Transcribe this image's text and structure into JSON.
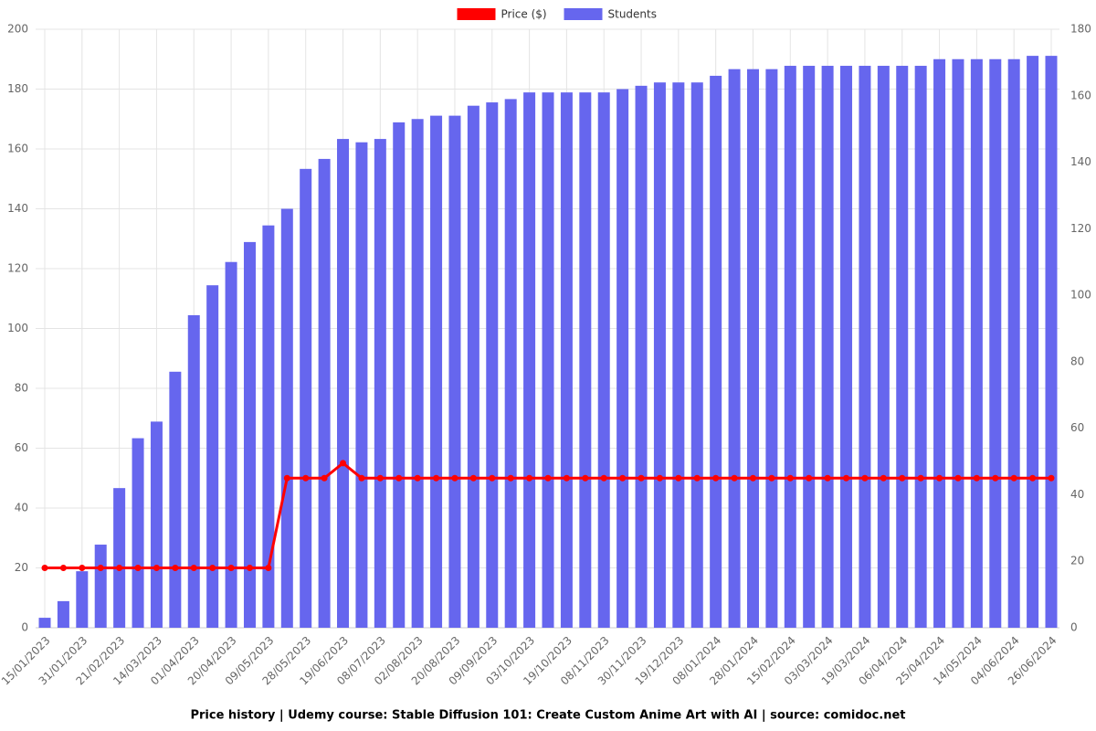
{
  "chart_data": {
    "type": "bar",
    "title": "Price history | Udemy course: Stable Diffusion 101: Create Custom Anime Art with AI | source: comidoc.net",
    "categories": [
      "15/01/2023",
      null,
      "31/01/2023",
      null,
      "21/02/2023",
      null,
      "14/03/2023",
      null,
      "01/04/2023",
      null,
      "20/04/2023",
      null,
      "09/05/2023",
      null,
      "28/05/2023",
      null,
      "19/06/2023",
      null,
      "08/07/2023",
      null,
      "02/08/2023",
      null,
      "20/08/2023",
      null,
      "09/09/2023",
      null,
      "03/10/2023",
      null,
      "19/10/2023",
      null,
      "08/11/2023",
      null,
      "30/11/2023",
      null,
      "19/12/2023",
      null,
      "08/01/2024",
      null,
      "28/01/2024",
      null,
      "15/02/2024",
      null,
      "03/03/2024",
      null,
      "19/03/2024",
      null,
      "06/04/2024",
      null,
      "25/04/2024",
      null,
      "14/05/2024",
      null,
      "04/06/2024",
      null,
      "26/06/2024"
    ],
    "series": [
      {
        "name": "Price ($)",
        "type": "line",
        "color": "#ff0000",
        "axis": "y",
        "values": [
          20,
          20,
          20,
          20,
          20,
          20,
          20,
          20,
          20,
          20,
          20,
          20,
          20,
          50,
          50,
          50,
          55,
          50,
          50,
          50,
          50,
          50,
          50,
          50,
          50,
          50,
          50,
          50,
          50,
          50,
          50,
          50,
          50,
          50,
          50,
          50,
          50,
          50,
          50,
          50,
          50,
          50,
          50,
          50,
          50,
          50,
          50,
          50,
          50,
          50,
          50,
          50,
          50,
          50,
          50
        ]
      },
      {
        "name": "Students",
        "type": "bar",
        "color": "#6666ee",
        "axis": "y2",
        "values": [
          3,
          8,
          17,
          25,
          42,
          57,
          62,
          77,
          94,
          103,
          110,
          116,
          121,
          126,
          138,
          141,
          147,
          146,
          147,
          152,
          153,
          154,
          154,
          157,
          158,
          159,
          161,
          161,
          161,
          161,
          161,
          162,
          163,
          164,
          164,
          164,
          166,
          168,
          168,
          168,
          169,
          169,
          169,
          169,
          169,
          169,
          169,
          169,
          171,
          171,
          171,
          171,
          171,
          172,
          172
        ]
      }
    ],
    "ylim": [
      0,
      200
    ],
    "yticks": [
      0,
      20,
      40,
      60,
      80,
      100,
      120,
      140,
      160,
      180,
      200
    ],
    "y2lim": [
      0,
      180
    ],
    "y2ticks": [
      0,
      20,
      40,
      60,
      80,
      100,
      120,
      140,
      160,
      180
    ],
    "grid": true,
    "legend": "top"
  }
}
